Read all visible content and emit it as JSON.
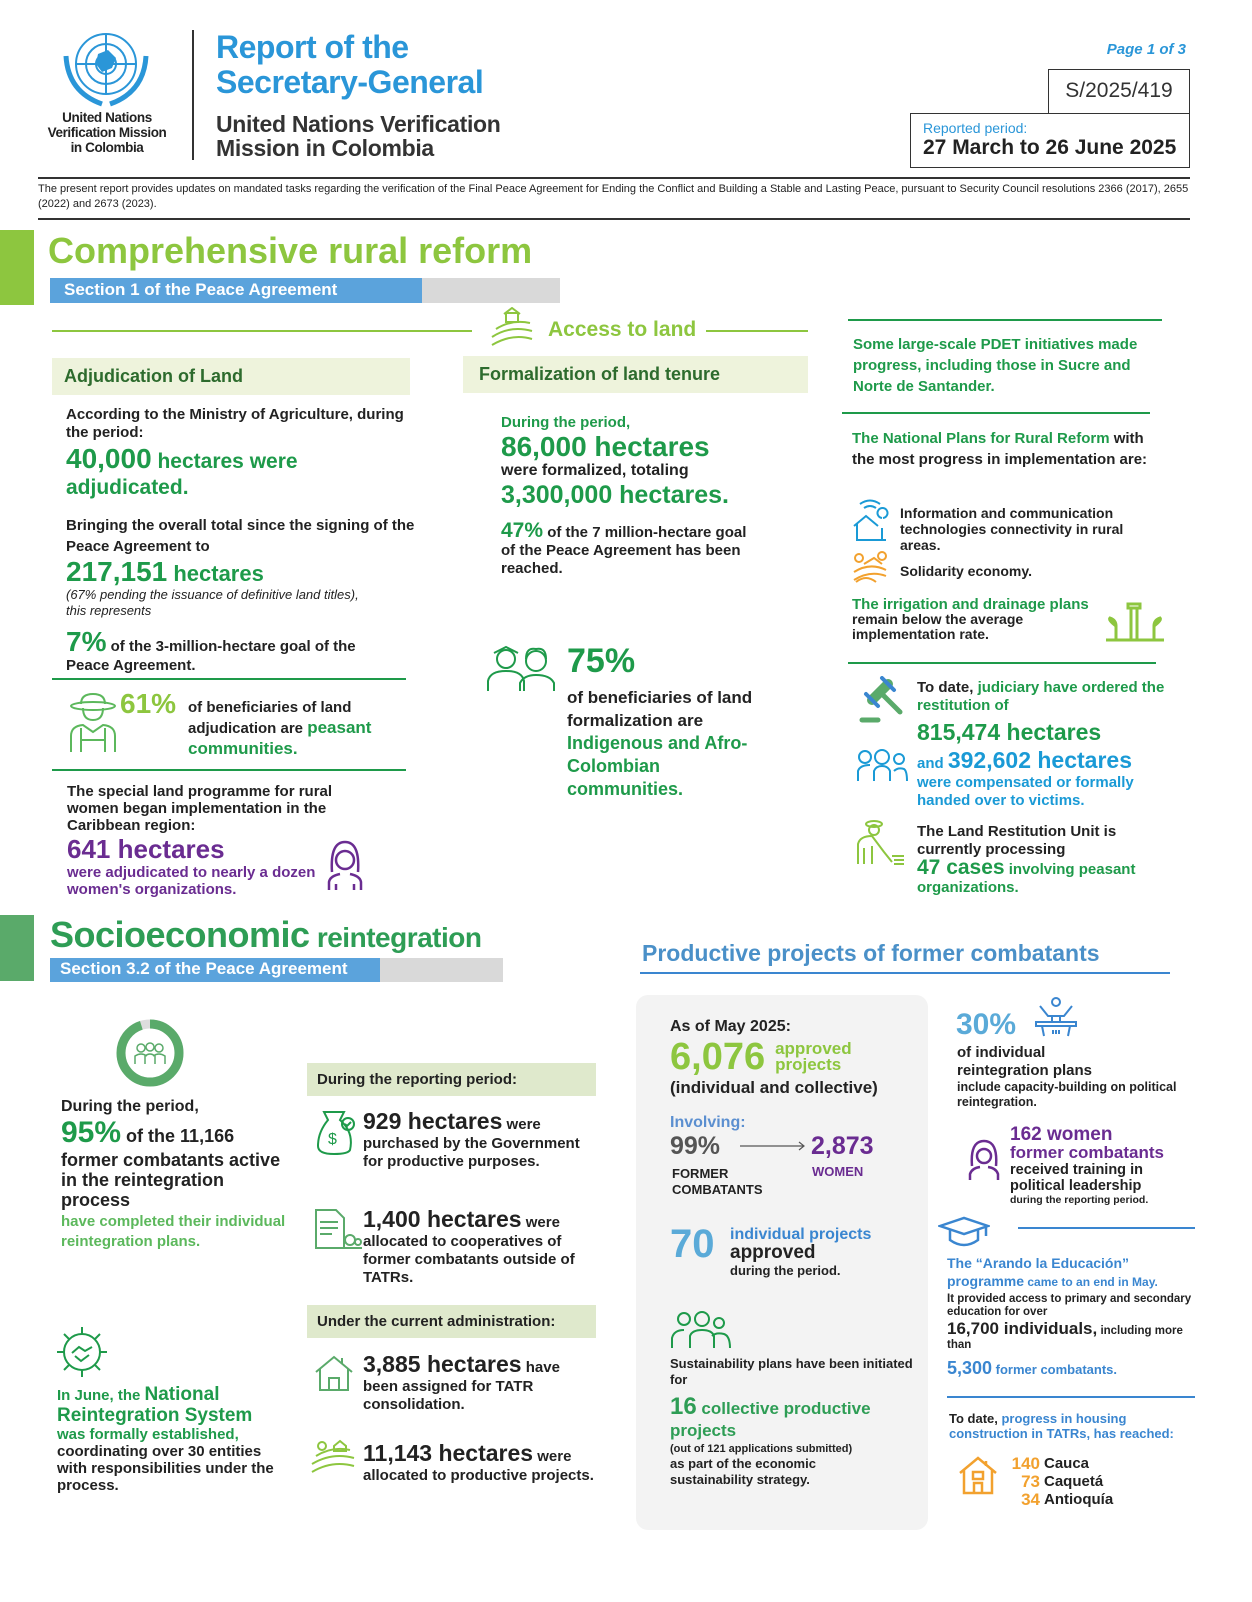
{
  "header": {
    "logo_text": [
      "United Nations",
      "Verification Mission",
      "in Colombia"
    ],
    "title": [
      "Report of the",
      "Secretary-General"
    ],
    "subtitle": [
      "United Nations Verification",
      "Mission in Colombia"
    ],
    "page": "Page 1 of 3",
    "doc_symbol": "S/2025/419",
    "period_label": "Reported period:",
    "period_value": "27 March to 26 June 2025",
    "intro": "The present report provides updates on mandated tasks regarding the verification of the Final Peace Agreement for Ending the Conflict and Building a Stable and Lasting Peace, pursuant to Security Council resolutions 2366 (2017), 2655 (2022) and 2673 (2023)."
  },
  "rural": {
    "title": "Comprehensive rural reform",
    "section": "Section 1 of the Peace Agreement",
    "access": "Access to land",
    "adjudication": {
      "heading": "Adjudication of Land",
      "p1": "According to the Ministry of Agriculture, during the period:",
      "n1": "40,000",
      "n1_text": " hectares were adjudicated.",
      "p2": "Bringing the overall total since the signing of the Peace Agreement to",
      "n2": "217,151",
      "n2_text": " hectares",
      "note": "(67% pending the issuance of definitive land titles), this represents",
      "n3": "7%",
      "n3_text": " of the 3-million-hectare goal of the Peace Agreement.",
      "pct": "61%",
      "pct_text": "of beneficiaries of land adjudication are ",
      "pct_hl": "peasant communities.",
      "women_p": "The special land programme for rural women began implementation in the Caribbean region:",
      "women_n": "641 hectares",
      "women_text": "were adjudicated to nearly a dozen women's organizations."
    },
    "formalization": {
      "heading": "Formalization of land tenure",
      "p1": "During the period,",
      "n1": "86,000 hectares",
      "p2": "were formalized, totaling",
      "n2": "3,300,000 hectares.",
      "n3": "47%",
      "n3_text": " of the 7 million-hectare goal of the Peace Agreement has been reached.",
      "pct": "75%",
      "pct_text": "of  beneficiaries of land formalization are ",
      "pct_hl": "Indigenous and Afro-Colombian communities."
    },
    "right": {
      "pdet": "Some large-scale PDET initiatives made progress, including those in Sucre and Norte de Santander.",
      "plans_hl": "The National Plans for Rural Reform",
      "plans_text": " with the most progress in implementation are:",
      "plan_items": [
        "Information and communication technologies connectivity in rural areas.",
        "Solidarity economy."
      ],
      "irrigation_hl": "The irrigation and drainage plans",
      "irrigation_text": " remain below the average implementation rate.",
      "jud_a": "To date, ",
      "jud_hl": "judiciary have ordered the restitution of",
      "jud_n1": "815,474 hectares",
      "jud_and": "and ",
      "jud_n2": "392,602 hectares",
      "jud_text": "were compensated or formally handed over to victims.",
      "unit_text": "The Land Restitution Unit is currently processing",
      "unit_n": "47 cases",
      "unit_hl": " involving peasant organizations."
    }
  },
  "socio": {
    "title_a": "Socioeconomic",
    "title_b": " reintegration",
    "section": "Section 3.2 of the Peace Agreement",
    "donut_pct": 95,
    "p1": "During the period,",
    "n1": "95%",
    "n1_text": " of the 11,166",
    "p2": "former combatants active in the reintegration process",
    "p2_hl": "have completed their individual reintegration plans.",
    "nrs_a": "In June, the ",
    "nrs_hl": "National Reintegration System",
    "nrs_b": " was formally established,",
    "nrs_c": " coordinating over 30 entities with responsibilities under the process.",
    "reporting_heading": "During the reporting period:",
    "r1_n": "929 hectares",
    "r1_a": " were",
    "r1_b": "purchased by the Government for productive purposes.",
    "r2_n": "1,400 hectares",
    "r2_a": " were",
    "r2_b": "allocated to cooperatives of former combatants outside of TATRs.",
    "admin_heading": "Under the current administration:",
    "r3_n": "3,885 hectares",
    "r3_a": " have",
    "r3_b": "been assigned for TATR consolidation.",
    "r4_n": "11,143 hectares",
    "r4_a": " were",
    "r4_b": "allocated to productive projects."
  },
  "projects": {
    "title": "Productive projects of former combatants",
    "asof": "As of May 2025:",
    "n1": "6,076",
    "n1_hl": "approved projects",
    "n1_text": "(individual and collective)",
    "involving": "Involving:",
    "fc_pct": "99%",
    "fc_label": "FORMER COMBATANTS",
    "women_n": "2,873",
    "women_label": "WOMEN",
    "ind_n": "70",
    "ind_hl": "individual projects",
    "ind_b": "approved",
    "ind_c": "during the period.",
    "sus_text": "Sustainability plans have been initiated for",
    "sus_n": "16",
    "sus_hl": " collective productive projects",
    "sus_note": "(out of 121 applications submitted)",
    "sus_c": "as part of the economic sustainability strategy.",
    "p30": "30%",
    "p30_a": "of individual reintegration plans",
    "p30_b": "include capacity-building on political reintegration.",
    "w_n": "162 women",
    "w_hl": "former combatants",
    "w_a": "received training in political leadership",
    "w_b": "during the reporting period.",
    "edu_hl": "The “Arando la Educación” programme",
    "edu_a": " came to an end in May.",
    "edu_b": "It provided access to primary and secondary education for over",
    "edu_n1": "16,700 individuals,",
    "edu_c": " including more than",
    "edu_n2": "5,300",
    "edu_d": " former combatants.",
    "housing_a": "To date, ",
    "housing_hl": "progress in housing construction in TATRs, has reached:",
    "housing": [
      {
        "n": "140",
        "place": "Cauca"
      },
      {
        "n": "73",
        "place": "Caquetá"
      },
      {
        "n": "34",
        "place": "Antioquía"
      }
    ]
  },
  "colors": {
    "un_blue": "#2a96d8",
    "green": "#1e9a4a",
    "light_green": "#8dc63f",
    "purple": "#6a2c91",
    "blue": "#3a86d0",
    "orange": "#f2a12e"
  }
}
